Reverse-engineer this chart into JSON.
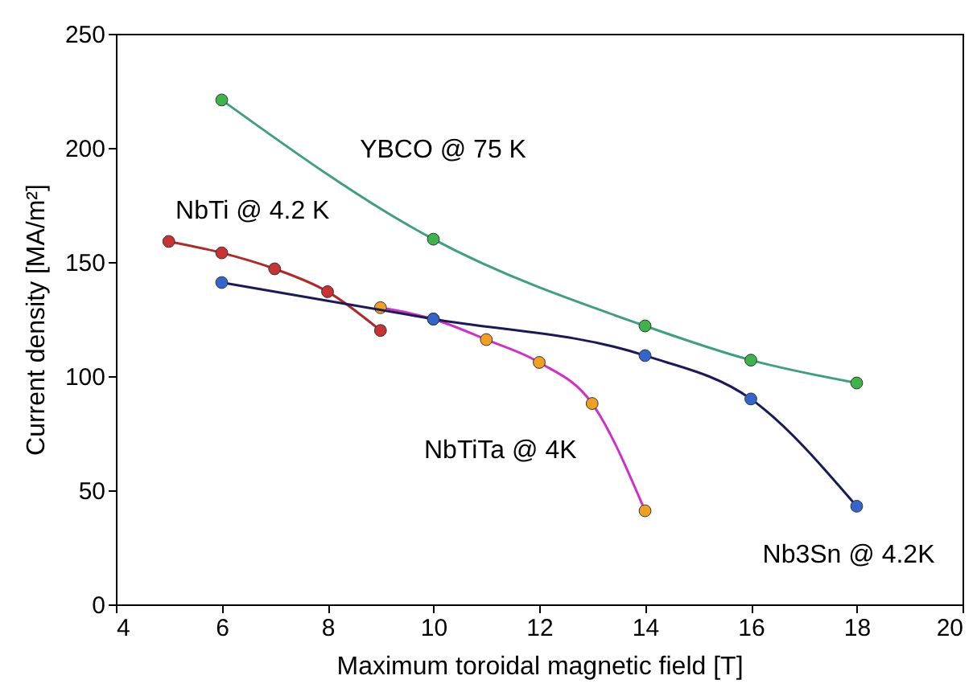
{
  "chart_data": {
    "type": "line",
    "xlabel": "Maximum toroidal magnetic field [T]",
    "ylabel": "Current density [MA/m²]",
    "xlim": [
      4,
      20
    ],
    "xticks": [
      4,
      6,
      8,
      10,
      12,
      14,
      16,
      18,
      20
    ],
    "ylim": [
      0,
      250
    ],
    "yticks": [
      0,
      50,
      100,
      150,
      200,
      250
    ],
    "grid": false,
    "marker": "circle",
    "line_style": "solid",
    "series": [
      {
        "name": "YBCO @ 75 K",
        "color": "#3f9f80",
        "colors": [
          "#3cb44a",
          "#3cb44a",
          "#3cb44a",
          "#3cb44a",
          "#3cb44a"
        ],
        "x": [
          6,
          10,
          14,
          16,
          18
        ],
        "values": [
          221,
          160,
          122,
          107,
          97
        ]
      },
      {
        "name": "NbTi @ 4.2 K",
        "color": "#b02828",
        "colors": [
          "#c83232",
          "#c83232",
          "#c83232",
          "#c83232",
          "#c83232"
        ],
        "x": [
          5,
          6,
          7,
          8,
          9
        ],
        "values": [
          159,
          154,
          147,
          137,
          120
        ]
      },
      {
        "name": "NbTiTa @ 4K",
        "color": "#d030c8",
        "colors": [
          "#f0a020",
          "#f0a020",
          "#f0a020",
          "#f0a020",
          "#f0a020",
          "#f0a020"
        ],
        "x": [
          9,
          10,
          11,
          12,
          13,
          14
        ],
        "values": [
          130,
          125,
          116,
          106,
          88,
          41
        ]
      },
      {
        "name": "Nb3Sn @ 4.2K",
        "color": "#1a1a5a",
        "colors": [
          "#3366cc",
          "#3366cc",
          "#3366cc",
          "#3366cc",
          "#3366cc"
        ],
        "x": [
          6,
          10,
          14,
          16,
          18
        ],
        "values": [
          141,
          125,
          109,
          90,
          43
        ]
      }
    ]
  }
}
